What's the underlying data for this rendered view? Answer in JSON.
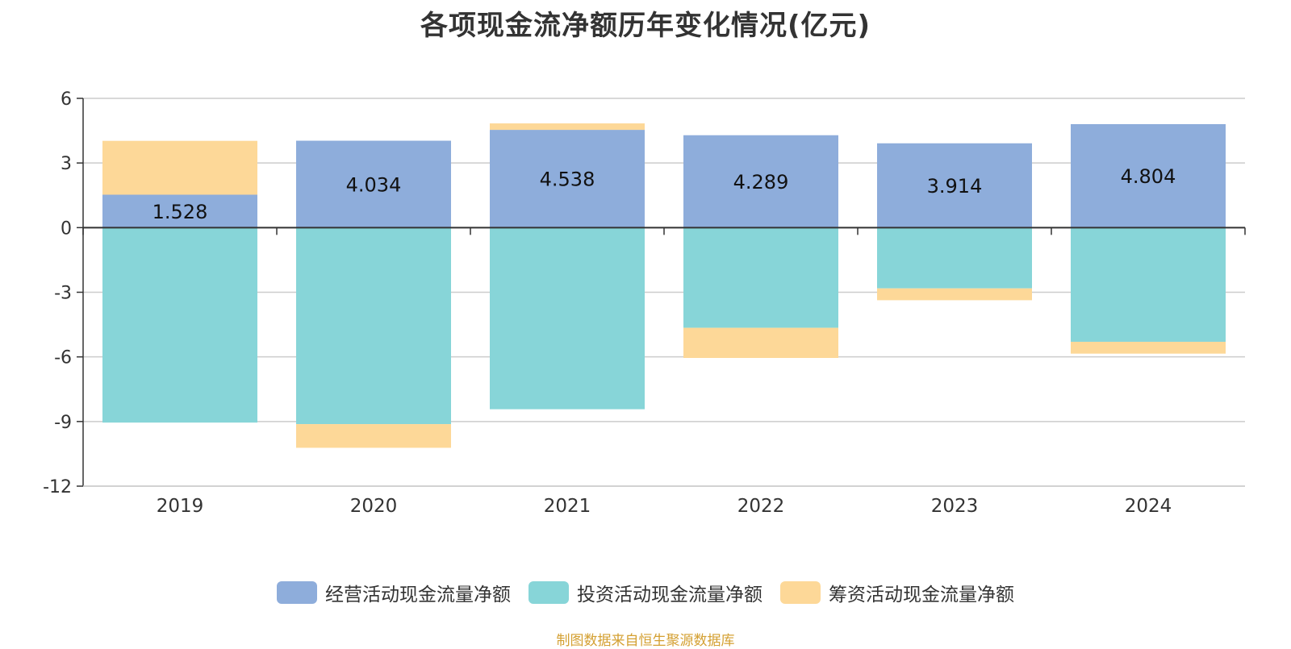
{
  "title": "各项现金流净额历年变化情况(亿元)",
  "source": "制图数据来自恒生聚源数据库",
  "colors": {
    "operating": "#8eaddb",
    "investing": "#87d5d8",
    "financing": "#fdd898",
    "grid": "#cccccc",
    "axis": "#333333",
    "text": "#333333",
    "source": "#d4a032"
  },
  "chart_data": {
    "type": "bar",
    "stacked": true,
    "categories": [
      "2019",
      "2020",
      "2021",
      "2022",
      "2023",
      "2024"
    ],
    "ylim": [
      -12,
      6
    ],
    "yticks": [
      6,
      3,
      0,
      -3,
      -6,
      -9,
      -12
    ],
    "grid": true,
    "legend_position": "bottom",
    "series": [
      {
        "name": "经营活动现金流量净额",
        "color_key": "operating",
        "values": [
          1.528,
          4.034,
          4.538,
          4.289,
          3.914,
          4.804
        ],
        "labels": [
          "1.528",
          "4.034",
          "4.538",
          "4.289",
          "3.914",
          "4.804"
        ]
      },
      {
        "name": "投资活动现金流量净额",
        "color_key": "investing",
        "values": [
          -9.05,
          -9.12,
          -8.43,
          -4.65,
          -2.82,
          -5.3
        ]
      },
      {
        "name": "筹资活动现金流量净额",
        "color_key": "financing",
        "values": [
          2.5,
          -1.1,
          0.3,
          -1.4,
          -0.55,
          -0.55
        ]
      }
    ]
  }
}
